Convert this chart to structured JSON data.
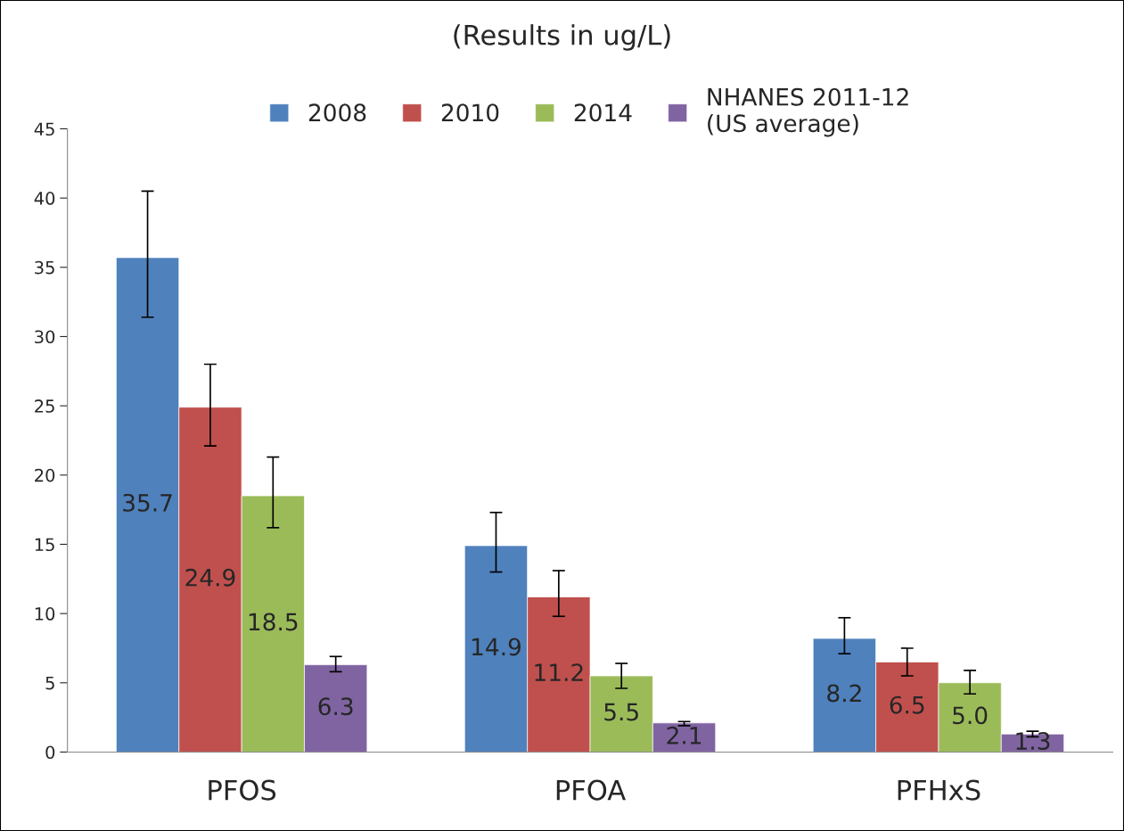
{
  "chart_data": {
    "type": "bar",
    "title": "(Results in ug/L)",
    "categories": [
      "PFOS",
      "PFOA",
      "PFHxS"
    ],
    "series": [
      {
        "name": "2008",
        "color": "#4f81bd",
        "values": [
          35.7,
          14.9,
          8.2
        ],
        "value_labels": [
          "35.7",
          "14.9",
          "8.2"
        ],
        "errors": [
          [
            31.4,
            40.5
          ],
          [
            13.0,
            17.3
          ],
          [
            7.1,
            9.7
          ]
        ]
      },
      {
        "name": "2010",
        "color": "#c0504d",
        "values": [
          24.9,
          11.2,
          6.5
        ],
        "value_labels": [
          "24.9",
          "11.2",
          "6.5"
        ],
        "errors": [
          [
            22.1,
            28.0
          ],
          [
            9.8,
            13.1
          ],
          [
            5.5,
            7.5
          ]
        ]
      },
      {
        "name": "2014",
        "color": "#9bbb59",
        "values": [
          18.5,
          5.5,
          5.0
        ],
        "value_labels": [
          "18.5",
          "5.5",
          "5.0"
        ],
        "errors": [
          [
            16.2,
            21.3
          ],
          [
            4.6,
            6.4
          ],
          [
            4.2,
            5.9
          ]
        ]
      },
      {
        "name": "NHANES 2011-12\n(US average)",
        "color": "#8064a2",
        "values": [
          6.3,
          2.1,
          1.3
        ],
        "value_labels": [
          "6.3",
          "2.1",
          "1.3"
        ],
        "errors": [
          [
            5.8,
            6.9
          ],
          [
            1.9,
            2.2
          ],
          [
            1.1,
            1.5
          ]
        ]
      }
    ],
    "ylim": [
      0,
      45
    ],
    "yticks": [
      0,
      5,
      10,
      15,
      20,
      25,
      30,
      35,
      40,
      45
    ],
    "grid": false,
    "legend": "top"
  }
}
